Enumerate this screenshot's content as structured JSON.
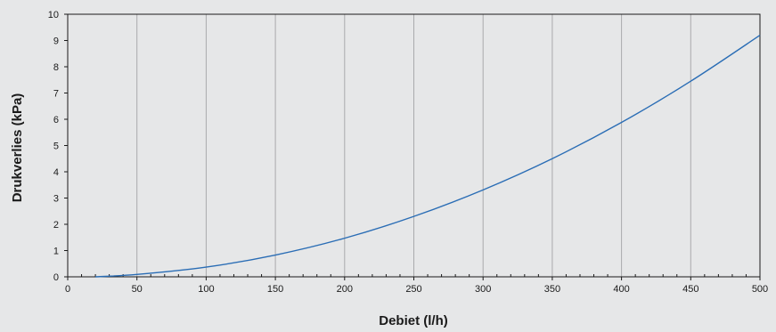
{
  "chart_data": {
    "type": "line",
    "title": "",
    "xlabel": "Debiet (l/h)",
    "ylabel": "Drukverlies (kPa)",
    "xlim": [
      0,
      500
    ],
    "ylim": [
      0,
      10
    ],
    "x_ticks": [
      0,
      50,
      100,
      150,
      200,
      250,
      300,
      350,
      400,
      450,
      500
    ],
    "y_ticks": [
      0,
      1,
      2,
      3,
      4,
      5,
      6,
      7,
      8,
      9,
      10
    ],
    "grid": {
      "vertical": true,
      "horizontal": false
    },
    "series": [
      {
        "x": [
          20,
          50,
          100,
          150,
          200,
          250,
          300,
          350,
          400,
          450,
          500
        ],
        "y": [
          0.0,
          0.09,
          0.37,
          0.83,
          1.47,
          2.3,
          3.31,
          4.5,
          5.88,
          7.45,
          9.2
        ]
      }
    ],
    "colors": {
      "background": "#e6e7e8",
      "plot_area": "#e6e7e8",
      "grid": "#a9aaac",
      "axis": "#1a1a1a",
      "line": "#2a6db5"
    }
  }
}
